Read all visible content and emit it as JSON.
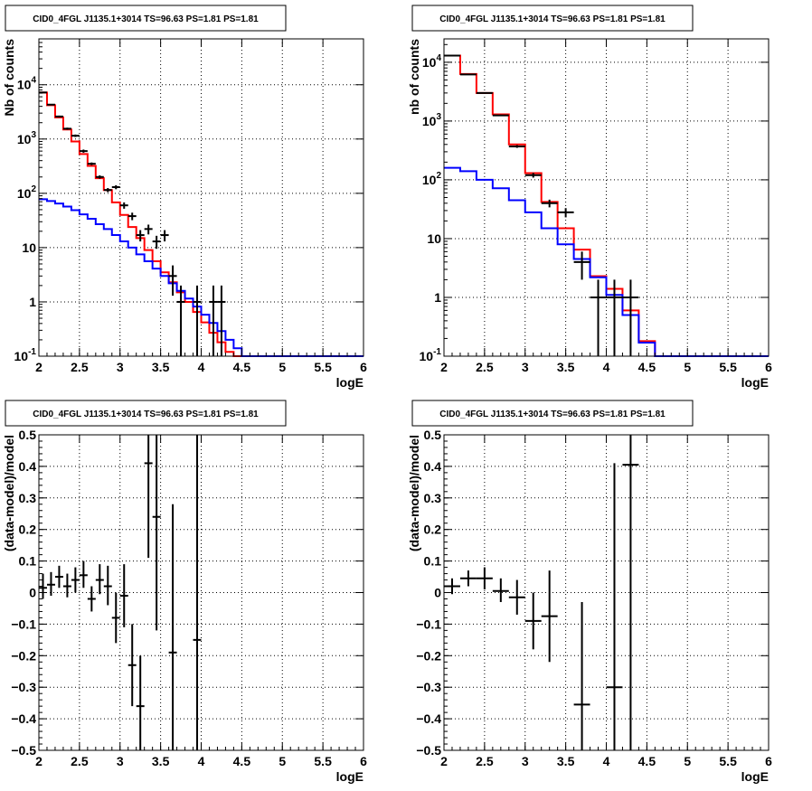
{
  "chart_data": [
    {
      "type": "line",
      "title": "CID0_4FGL J1135.1+3014 TS=96.63 PS=1.81 PS=1.81",
      "xlabel": "logE",
      "ylabel": "Nb of counts",
      "xlim": [
        2,
        6
      ],
      "ylim": [
        0.1,
        70000
      ],
      "yscale": "log",
      "grid": true,
      "x_ticks": [
        "2",
        "2.5",
        "3",
        "3.5",
        "4",
        "4.5",
        "5",
        "5.5",
        "6"
      ],
      "y_ticks": [
        {
          "value": 0.1,
          "label": "10^-1"
        },
        {
          "value": 1,
          "label": "1"
        },
        {
          "value": 10,
          "label": "10"
        },
        {
          "value": 100,
          "label": "10^2"
        },
        {
          "value": 1000,
          "label": "10^3"
        },
        {
          "value": 10000,
          "label": "10^4"
        }
      ],
      "bin_edges": [
        2.0,
        2.1,
        2.2,
        2.3,
        2.4,
        2.5,
        2.6,
        2.7,
        2.8,
        2.9,
        3.0,
        3.1,
        3.2,
        3.3,
        3.4,
        3.5,
        3.6,
        3.7,
        3.8,
        3.9,
        4.0,
        4.1,
        4.2,
        4.3,
        4.4,
        4.5,
        4.6,
        4.7,
        4.8,
        4.9,
        5.0,
        5.1,
        5.2,
        5.3,
        5.4,
        5.5,
        5.6,
        5.7,
        5.8,
        5.9,
        6.0
      ],
      "series": [
        {
          "style": "step",
          "color": "#ff0000",
          "values": [
            7200,
            4200,
            2500,
            1500,
            900,
            530,
            320,
            190,
            115,
            68,
            40,
            24,
            15,
            9,
            5.6,
            3.5,
            2.3,
            1.5,
            1.0,
            0.65,
            0.42,
            0.27,
            0.18,
            0.12,
            0.1,
            0.1,
            0.1,
            0.1,
            0.1,
            0.1,
            0.1,
            0.1,
            0.1,
            0.1,
            0.1,
            0.1,
            0.1,
            0.1,
            0.1,
            0.1
          ]
        },
        {
          "style": "step",
          "color": "#0000ff",
          "values": [
            78,
            72,
            65,
            57,
            49,
            41,
            34,
            27,
            22,
            17,
            13,
            10,
            7.5,
            5.6,
            4.1,
            3.0,
            2.2,
            1.6,
            1.15,
            0.82,
            0.58,
            0.41,
            0.29,
            0.2,
            0.14,
            0.1,
            0.1,
            0.1,
            0.1,
            0.1,
            0.1,
            0.1,
            0.1,
            0.1,
            0.1,
            0.1,
            0.1,
            0.1,
            0.1,
            0.1
          ]
        },
        {
          "style": "points",
          "color": "#000000",
          "points": [
            {
              "x": 2.05,
              "y": 7200,
              "lo": 7050,
              "hi": 7350
            },
            {
              "x": 2.15,
              "y": 4300,
              "lo": 4180,
              "hi": 4420
            },
            {
              "x": 2.25,
              "y": 2600,
              "lo": 2500,
              "hi": 2700
            },
            {
              "x": 2.35,
              "y": 1550,
              "lo": 1480,
              "hi": 1620
            },
            {
              "x": 2.45,
              "y": 1150,
              "lo": 1090,
              "hi": 1210
            },
            {
              "x": 2.55,
              "y": 600,
              "lo": 560,
              "hi": 640
            },
            {
              "x": 2.65,
              "y": 350,
              "lo": 330,
              "hi": 370
            },
            {
              "x": 2.75,
              "y": 200,
              "lo": 186,
              "hi": 214
            },
            {
              "x": 2.85,
              "y": 115,
              "lo": 105,
              "hi": 125
            },
            {
              "x": 2.95,
              "y": 130,
              "lo": 119,
              "hi": 141
            },
            {
              "x": 3.05,
              "y": 60,
              "lo": 52,
              "hi": 68
            },
            {
              "x": 3.15,
              "y": 38,
              "lo": 32,
              "hi": 44
            },
            {
              "x": 3.25,
              "y": 17,
              "lo": 13,
              "hi": 21
            },
            {
              "x": 3.35,
              "y": 22,
              "lo": 17.5,
              "hi": 26.5
            },
            {
              "x": 3.45,
              "y": 13,
              "lo": 9.5,
              "hi": 16.5
            },
            {
              "x": 3.55,
              "y": 17,
              "lo": 13,
              "hi": 21
            },
            {
              "x": 3.65,
              "y": 3,
              "lo": 1.3,
              "hi": 4.7
            },
            {
              "x": 3.75,
              "y": 1,
              "lo": 0.1,
              "hi": 2
            },
            {
              "x": 3.95,
              "y": 1,
              "lo": 0.1,
              "hi": 2
            },
            {
              "x": 4.15,
              "y": 1,
              "lo": 0.1,
              "hi": 2
            },
            {
              "x": 4.25,
              "y": 1,
              "lo": 0.1,
              "hi": 2
            }
          ]
        }
      ]
    },
    {
      "type": "line",
      "title": "CID0_4FGL J1135.1+3014 TS=96.63 PS=1.81 PS=1.81",
      "xlabel": "logE",
      "ylabel": "nb of counts",
      "xlim": [
        2,
        6
      ],
      "ylim": [
        0.1,
        25000
      ],
      "yscale": "log",
      "grid": true,
      "x_ticks": [
        "2",
        "2.5",
        "3",
        "3.5",
        "4",
        "4.5",
        "5",
        "5.5",
        "6"
      ],
      "y_ticks": [
        {
          "value": 0.1,
          "label": "10^-1"
        },
        {
          "value": 1,
          "label": "1"
        },
        {
          "value": 10,
          "label": "10"
        },
        {
          "value": 100,
          "label": "10^2"
        },
        {
          "value": 1000,
          "label": "10^3"
        },
        {
          "value": 10000,
          "label": "10^4"
        }
      ],
      "bin_edges": [
        2.0,
        2.2,
        2.4,
        2.6,
        2.8,
        3.0,
        3.2,
        3.4,
        3.6,
        3.8,
        4.0,
        4.2,
        4.4,
        4.6,
        4.8,
        5.0,
        5.2,
        5.4,
        5.6,
        5.8,
        6.0
      ],
      "series": [
        {
          "style": "step",
          "color": "#ff0000",
          "values": [
            13000,
            6300,
            3000,
            1300,
            400,
            130,
            42,
            15,
            6.5,
            2.3,
            1.4,
            0.6,
            0.18,
            0.1,
            0.1,
            0.1,
            0.1,
            0.1,
            0.1,
            0.1
          ]
        },
        {
          "style": "step",
          "color": "#0000ff",
          "values": [
            160,
            140,
            100,
            72,
            45,
            28,
            15,
            8,
            4.5,
            2.2,
            1.1,
            0.5,
            0.17,
            0.1,
            0.1,
            0.1,
            0.1,
            0.1,
            0.1,
            0.1
          ]
        },
        {
          "style": "points",
          "color": "#000000",
          "points": [
            {
              "x": 2.1,
              "y": 13000,
              "lo": 12880,
              "hi": 13120
            },
            {
              "x": 2.3,
              "y": 6200,
              "lo": 6120,
              "hi": 6280
            },
            {
              "x": 2.5,
              "y": 3000,
              "lo": 2945,
              "hi": 3055
            },
            {
              "x": 2.7,
              "y": 1250,
              "lo": 1215,
              "hi": 1285
            },
            {
              "x": 2.9,
              "y": 370,
              "lo": 350,
              "hi": 390
            },
            {
              "x": 3.1,
              "y": 120,
              "lo": 109,
              "hi": 131
            },
            {
              "x": 3.3,
              "y": 40,
              "lo": 34,
              "hi": 46
            },
            {
              "x": 3.5,
              "y": 28,
              "lo": 23,
              "hi": 33
            },
            {
              "x": 3.7,
              "y": 4,
              "lo": 2,
              "hi": 6
            },
            {
              "x": 3.9,
              "y": 1,
              "lo": 0.1,
              "hi": 2
            },
            {
              "x": 4.1,
              "y": 1,
              "lo": 0.1,
              "hi": 2
            },
            {
              "x": 4.3,
              "y": 1,
              "lo": 0.1,
              "hi": 2
            }
          ]
        }
      ]
    },
    {
      "type": "scatter",
      "title": "CID0_4FGL J1135.1+3014 TS=96.63 PS=1.81 PS=1.81",
      "xlabel": "logE",
      "ylabel": "(data-model)/model",
      "xlim": [
        2,
        6
      ],
      "ylim": [
        -0.5,
        0.5
      ],
      "yscale": "linear",
      "grid": true,
      "x_ticks": [
        "2",
        "2.5",
        "3",
        "3.5",
        "4",
        "4.5",
        "5",
        "5.5",
        "6"
      ],
      "y_ticks": [
        {
          "value": -0.5,
          "label": "−0.5"
        },
        {
          "value": -0.4,
          "label": "−0.4"
        },
        {
          "value": -0.3,
          "label": "−0.3"
        },
        {
          "value": -0.2,
          "label": "−0.2"
        },
        {
          "value": -0.1,
          "label": "−0.1"
        },
        {
          "value": 0,
          "label": "0"
        },
        {
          "value": 0.1,
          "label": "0.1"
        },
        {
          "value": 0.2,
          "label": "0.2"
        },
        {
          "value": 0.3,
          "label": "0.3"
        },
        {
          "value": 0.4,
          "label": "0.4"
        },
        {
          "value": 0.5,
          "label": "0.5"
        }
      ],
      "bin_width": 0.1,
      "series": [
        {
          "style": "points",
          "color": "#000000",
          "points": [
            {
              "x": 2.05,
              "y": 0.015,
              "lo": -0.02,
              "hi": 0.06
            },
            {
              "x": 2.15,
              "y": 0.025,
              "lo": -0.01,
              "hi": 0.065
            },
            {
              "x": 2.25,
              "y": 0.05,
              "lo": 0.015,
              "hi": 0.085
            },
            {
              "x": 2.35,
              "y": 0.02,
              "lo": -0.015,
              "hi": 0.06
            },
            {
              "x": 2.45,
              "y": 0.04,
              "lo": 0.0,
              "hi": 0.08
            },
            {
              "x": 2.55,
              "y": 0.055,
              "lo": 0.015,
              "hi": 0.1
            },
            {
              "x": 2.65,
              "y": -0.02,
              "lo": -0.06,
              "hi": 0.02
            },
            {
              "x": 2.75,
              "y": 0.04,
              "lo": -0.005,
              "hi": 0.09
            },
            {
              "x": 2.85,
              "y": 0.02,
              "lo": -0.04,
              "hi": 0.085
            },
            {
              "x": 2.95,
              "y": -0.08,
              "lo": -0.16,
              "hi": 0.0
            },
            {
              "x": 3.05,
              "y": -0.01,
              "lo": -0.11,
              "hi": 0.09
            },
            {
              "x": 3.15,
              "y": -0.23,
              "lo": -0.36,
              "hi": -0.1
            },
            {
              "x": 3.25,
              "y": -0.36,
              "lo": -0.5,
              "hi": -0.2
            },
            {
              "x": 3.35,
              "y": 0.41,
              "lo": 0.11,
              "hi": 0.5
            },
            {
              "x": 3.45,
              "y": 0.24,
              "lo": -0.12,
              "hi": 0.5
            },
            {
              "x": 3.65,
              "y": -0.19,
              "lo": -0.5,
              "hi": 0.28
            },
            {
              "x": 3.95,
              "y": -0.15,
              "lo": -0.5,
              "hi": 0.5
            }
          ]
        }
      ]
    },
    {
      "type": "scatter",
      "title": "CID0_4FGL J1135.1+3014 TS=96.63 PS=1.81 PS=1.81",
      "xlabel": "logE",
      "ylabel": "(data-model)/model",
      "xlim": [
        2,
        6
      ],
      "ylim": [
        -0.5,
        0.5
      ],
      "yscale": "linear",
      "grid": true,
      "x_ticks": [
        "2",
        "2.5",
        "3",
        "3.5",
        "4",
        "4.5",
        "5",
        "5.5",
        "6"
      ],
      "y_ticks": [
        {
          "value": -0.5,
          "label": "−0.5"
        },
        {
          "value": -0.4,
          "label": "−0.4"
        },
        {
          "value": -0.3,
          "label": "−0.3"
        },
        {
          "value": -0.2,
          "label": "−0.2"
        },
        {
          "value": -0.1,
          "label": "−0.1"
        },
        {
          "value": 0,
          "label": "0"
        },
        {
          "value": 0.1,
          "label": "0.1"
        },
        {
          "value": 0.2,
          "label": "0.2"
        },
        {
          "value": 0.3,
          "label": "0.3"
        },
        {
          "value": 0.4,
          "label": "0.4"
        },
        {
          "value": 0.5,
          "label": "0.5"
        }
      ],
      "bin_width": 0.2,
      "series": [
        {
          "style": "points",
          "color": "#000000",
          "points": [
            {
              "x": 2.1,
              "y": 0.02,
              "lo": -0.005,
              "hi": 0.045
            },
            {
              "x": 2.3,
              "y": 0.045,
              "lo": 0.02,
              "hi": 0.07
            },
            {
              "x": 2.5,
              "y": 0.045,
              "lo": 0.01,
              "hi": 0.08
            },
            {
              "x": 2.7,
              "y": 0.005,
              "lo": -0.03,
              "hi": 0.045
            },
            {
              "x": 2.9,
              "y": -0.015,
              "lo": -0.07,
              "hi": 0.04
            },
            {
              "x": 3.1,
              "y": -0.09,
              "lo": -0.18,
              "hi": 0.0
            },
            {
              "x": 3.3,
              "y": -0.075,
              "lo": -0.22,
              "hi": 0.07
            },
            {
              "x": 3.7,
              "y": -0.355,
              "lo": -0.5,
              "hi": -0.03
            },
            {
              "x": 4.1,
              "y": -0.3,
              "lo": -0.5,
              "hi": 0.41
            },
            {
              "x": 4.3,
              "y": 0.405,
              "lo": -0.5,
              "hi": 0.5
            }
          ]
        }
      ]
    }
  ]
}
